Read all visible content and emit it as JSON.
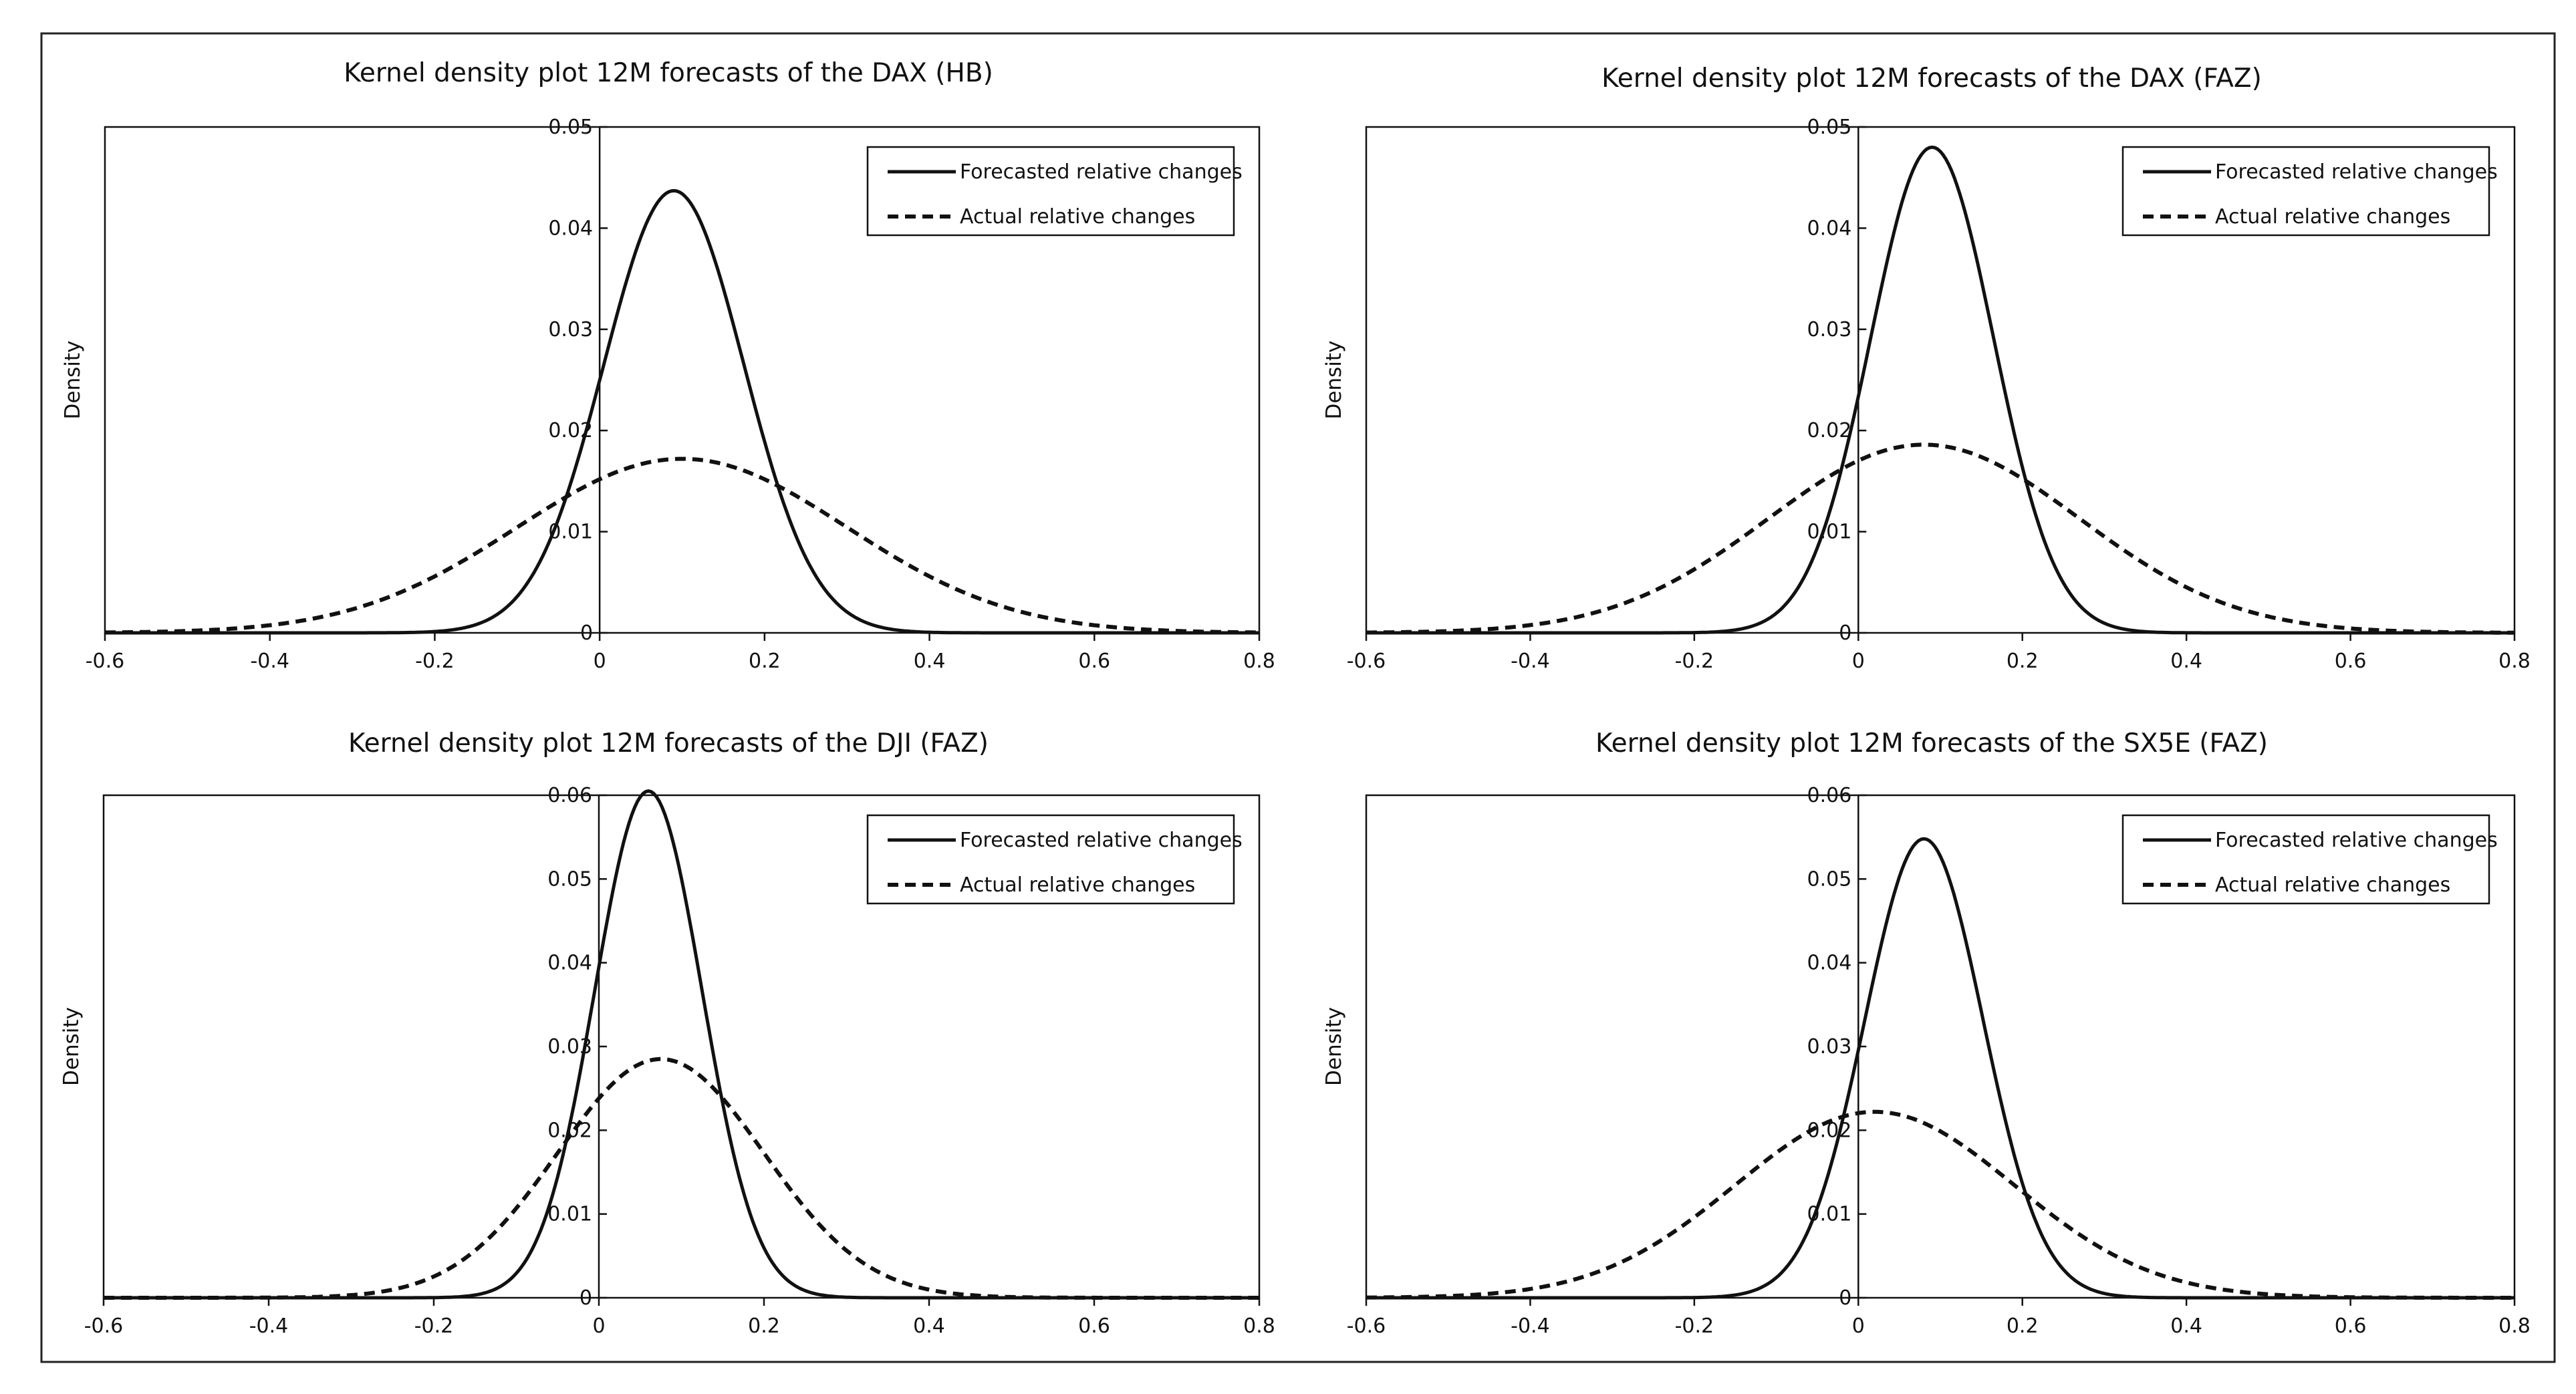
{
  "figure": {
    "frame_color": "#222222",
    "line_color": "#111111"
  },
  "chart_data": [
    {
      "type": "line",
      "title": "Kernel density plot 12M forecasts of the DAX (HB)",
      "xlabel": "",
      "ylabel": "Density",
      "xlim": [
        -0.6,
        0.8
      ],
      "ylim": [
        0,
        0.05
      ],
      "xticks": [
        -0.6,
        -0.4,
        -0.2,
        0,
        0.2,
        0.4,
        0.6,
        0.8
      ],
      "xtick_labels": [
        "-0.6",
        "-0.4",
        "-0.2",
        "0",
        "0.2",
        "0.4",
        "0.6",
        "0.8"
      ],
      "yticks": [
        0,
        0.01,
        0.02,
        0.03,
        0.04,
        0.05
      ],
      "ytick_labels": [
        "0",
        "0.01",
        "0.02",
        "0.03",
        "0.04",
        "0.05"
      ],
      "legend": {
        "position": "top-right"
      },
      "grid": false,
      "series": [
        {
          "name": "Forecasted relative changes",
          "style": "solid",
          "mean": 0.09,
          "peak": 0.0437,
          "sd": 0.085
        },
        {
          "name": "Actual relative changes",
          "style": "dashed",
          "mean": 0.1,
          "peak": 0.0172,
          "sd": 0.2
        }
      ]
    },
    {
      "type": "line",
      "title": "Kernel density plot 12M forecasts of the DAX (FAZ)",
      "xlabel": "",
      "ylabel": "Density",
      "xlim": [
        -0.6,
        0.8
      ],
      "ylim": [
        0,
        0.05
      ],
      "xticks": [
        -0.6,
        -0.4,
        -0.2,
        0,
        0.2,
        0.4,
        0.6,
        0.8
      ],
      "xtick_labels": [
        "-0.6",
        "-0.4",
        "-0.2",
        "0",
        "0.2",
        "0.4",
        "0.6",
        "0.8"
      ],
      "yticks": [
        0,
        0.01,
        0.02,
        0.03,
        0.04,
        0.05
      ],
      "ytick_labels": [
        "0",
        "0.01",
        "0.02",
        "0.03",
        "0.04",
        "0.05"
      ],
      "legend": {
        "position": "top-right"
      },
      "grid": false,
      "series": [
        {
          "name": "Forecasted relative changes",
          "style": "solid",
          "mean": 0.09,
          "peak": 0.048,
          "sd": 0.075
        },
        {
          "name": "Actual relative changes",
          "style": "dashed",
          "mean": 0.08,
          "peak": 0.0186,
          "sd": 0.19
        }
      ]
    },
    {
      "type": "line",
      "title": "Kernel density plot 12M forecasts of the DJI (FAZ)",
      "xlabel": "",
      "ylabel": "Density",
      "xlim": [
        -0.6,
        0.8
      ],
      "ylim": [
        0,
        0.06
      ],
      "xticks": [
        -0.6,
        -0.4,
        -0.2,
        0,
        0.2,
        0.4,
        0.6,
        0.8
      ],
      "xtick_labels": [
        "-0.6",
        "-0.4",
        "-0.2",
        "0",
        "0.2",
        "0.4",
        "0.6",
        "0.8"
      ],
      "yticks": [
        0,
        0.01,
        0.02,
        0.03,
        0.04,
        0.05,
        0.06
      ],
      "ytick_labels": [
        "0",
        "0.01",
        "0.02",
        "0.03",
        "0.04",
        "0.05",
        "0.06"
      ],
      "legend": {
        "position": "top-right"
      },
      "grid": false,
      "series": [
        {
          "name": "Forecasted relative changes",
          "style": "solid",
          "mean": 0.06,
          "peak": 0.0605,
          "sd": 0.065
        },
        {
          "name": "Actual relative changes",
          "style": "dashed",
          "mean": 0.075,
          "peak": 0.0285,
          "sd": 0.125
        }
      ]
    },
    {
      "type": "line",
      "title": "Kernel density plot 12M forecasts of the SX5E (FAZ)",
      "xlabel": "",
      "ylabel": "Density",
      "xlim": [
        -0.6,
        0.8
      ],
      "ylim": [
        0,
        0.06
      ],
      "xticks": [
        -0.6,
        -0.4,
        -0.2,
        0,
        0.2,
        0.4,
        0.6,
        0.8
      ],
      "xtick_labels": [
        "-0.6",
        "-0.4",
        "-0.2",
        "0",
        "0.2",
        "0.4",
        "0.6",
        "0.8"
      ],
      "yticks": [
        0,
        0.01,
        0.02,
        0.03,
        0.04,
        0.05,
        0.06
      ],
      "ytick_labels": [
        "0",
        "0.01",
        "0.02",
        "0.03",
        "0.04",
        "0.05",
        "0.06"
      ],
      "legend": {
        "position": "top-right"
      },
      "grid": false,
      "series": [
        {
          "name": "Forecasted relative changes",
          "style": "solid",
          "mean": 0.08,
          "peak": 0.0548,
          "sd": 0.072
        },
        {
          "name": "Actual relative changes",
          "style": "dashed",
          "mean": 0.02,
          "peak": 0.0222,
          "sd": 0.17
        }
      ]
    }
  ]
}
